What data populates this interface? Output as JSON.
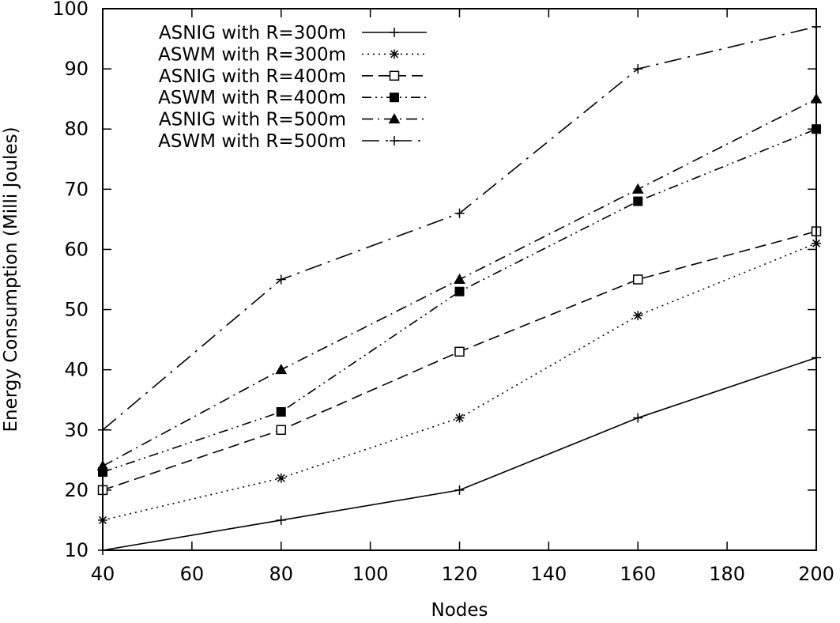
{
  "chart_data": {
    "type": "line",
    "title": "",
    "xlabel": "Nodes",
    "ylabel": "Energy Consumption (Milli Joules)",
    "xlim": [
      40,
      200
    ],
    "ylim": [
      10,
      100
    ],
    "x_ticks": [
      "40",
      "60",
      "80",
      "100",
      "120",
      "140",
      "160",
      "180",
      "200"
    ],
    "y_ticks": [
      "10",
      "20",
      "30",
      "40",
      "50",
      "60",
      "70",
      "80",
      "90",
      "100"
    ],
    "grid": false,
    "legend_position": "top-left",
    "x": [
      40,
      80,
      120,
      160,
      200
    ],
    "series": [
      {
        "name": "ASNIG with R=300m",
        "values": [
          10,
          15,
          20,
          32,
          42
        ],
        "marker": "plus",
        "dash": "solid"
      },
      {
        "name": "ASWM with R=300m",
        "values": [
          15,
          22,
          32,
          49,
          61
        ],
        "marker": "star",
        "dash": "dotted"
      },
      {
        "name": "ASNIG with R=400m",
        "values": [
          20,
          30,
          43,
          55,
          63
        ],
        "marker": "open-square",
        "dash": "dashed"
      },
      {
        "name": "ASWM with R=400m",
        "values": [
          23,
          33,
          53,
          68,
          80
        ],
        "marker": "filled-square",
        "dash": "dash-dot-dot"
      },
      {
        "name": "ASNIG with R=500m",
        "values": [
          24,
          40,
          55,
          70,
          85
        ],
        "marker": "filled-triangle",
        "dash": "dash-dot"
      },
      {
        "name": "ASWM with R=500m",
        "values": [
          30,
          55,
          66,
          90,
          97
        ],
        "marker": "plus",
        "dash": "long-dash-dot"
      }
    ]
  }
}
